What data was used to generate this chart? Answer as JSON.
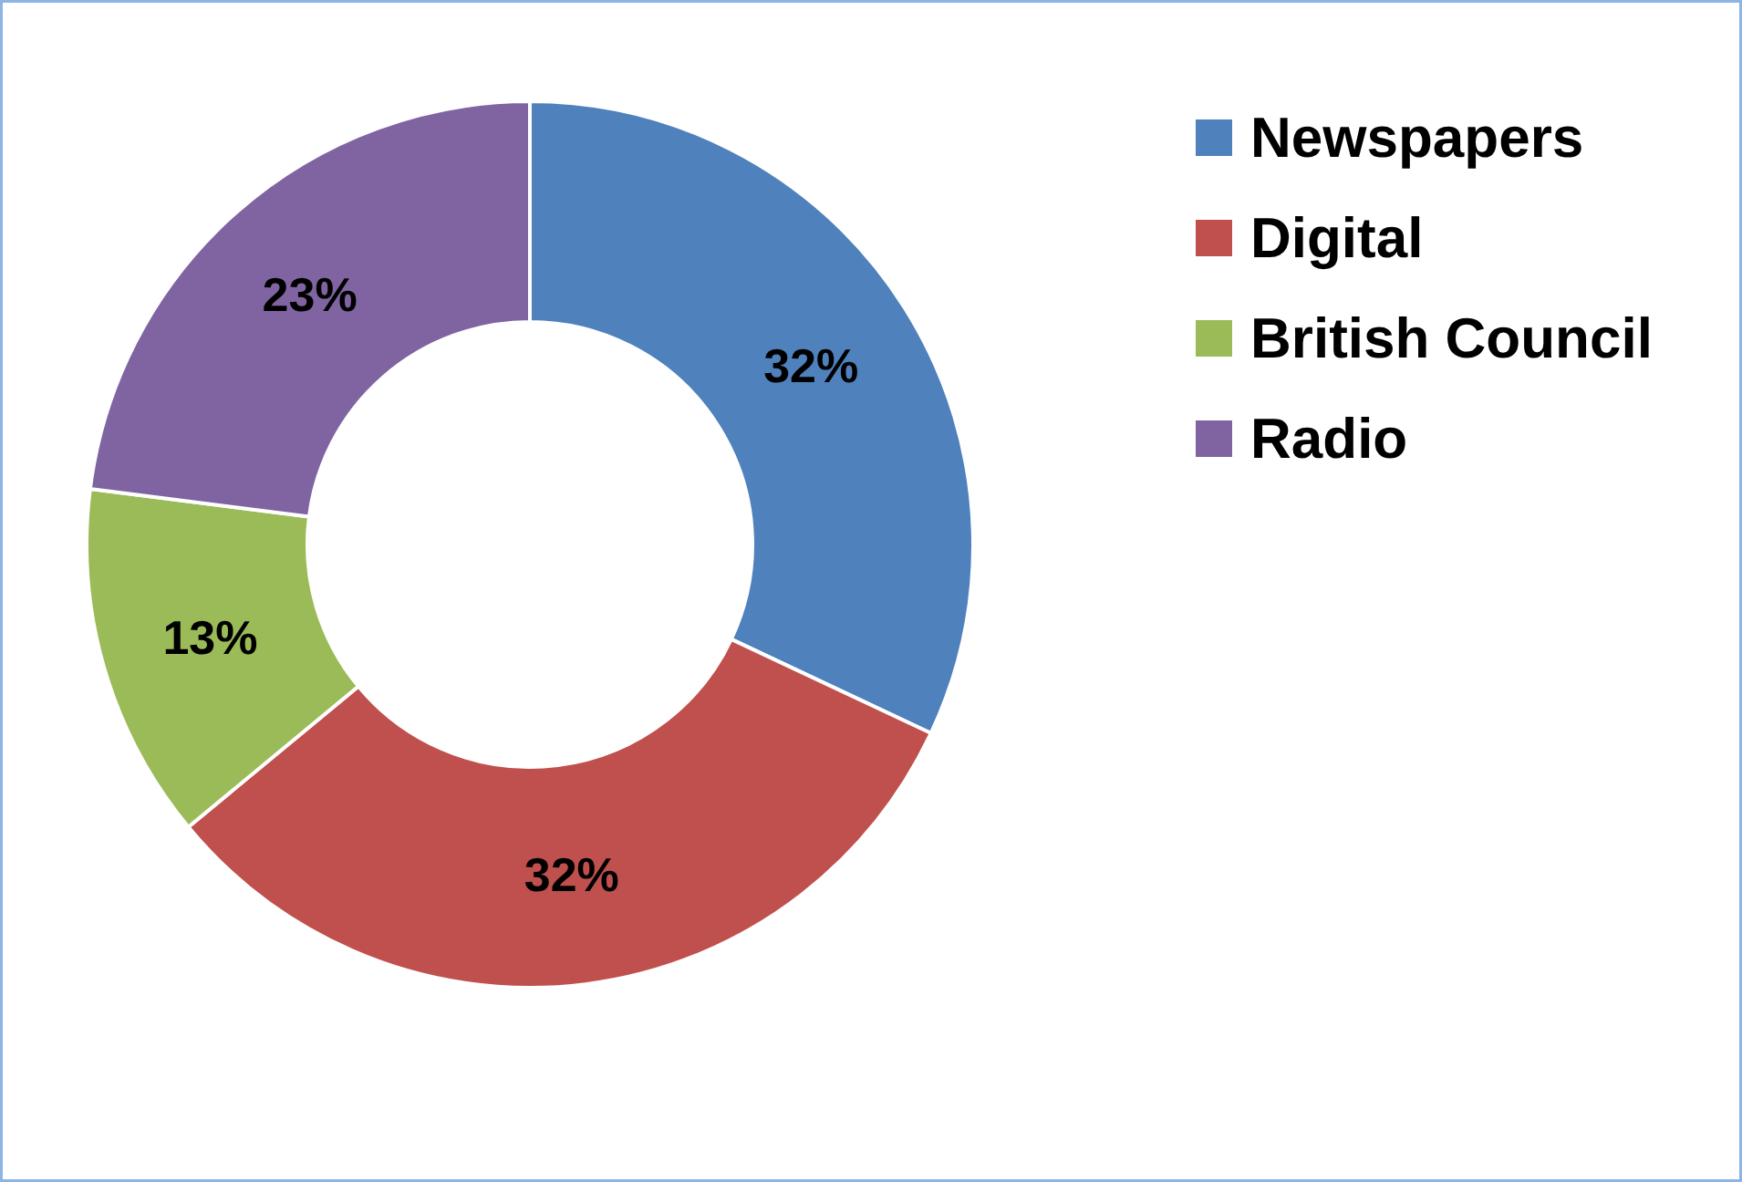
{
  "chart_data": {
    "type": "donut",
    "categories": [
      "Newspapers",
      "Digital",
      "British Council",
      "Radio"
    ],
    "values": [
      32,
      32,
      13,
      23
    ],
    "colors": [
      "#4f81bd",
      "#c0504d",
      "#9bbb59",
      "#8064a2"
    ],
    "value_labels": [
      "32%",
      "32%",
      "13%",
      "23%"
    ],
    "legend": "top right"
  }
}
